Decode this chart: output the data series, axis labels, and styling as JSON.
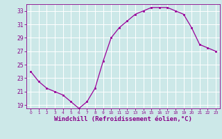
{
  "x": [
    0,
    1,
    2,
    3,
    4,
    5,
    6,
    7,
    8,
    9,
    10,
    11,
    12,
    13,
    14,
    15,
    16,
    17,
    18,
    19,
    20,
    21,
    22,
    23
  ],
  "y": [
    24.0,
    22.5,
    21.5,
    21.0,
    20.5,
    19.5,
    18.5,
    19.5,
    21.5,
    25.5,
    29.0,
    30.5,
    31.5,
    32.5,
    33.0,
    33.5,
    33.5,
    33.5,
    33.0,
    32.5,
    30.5,
    28.0,
    27.5,
    27.0
  ],
  "line_color": "#990099",
  "marker": "s",
  "marker_size": 2,
  "bg_color": "#cce8e8",
  "grid_color": "#ffffff",
  "xlabel": "Windchill (Refroidissement éolien,°C)",
  "xlabel_fontsize": 6.5,
  "tick_color": "#880088",
  "ylim": [
    18.5,
    34.0
  ],
  "xlim": [
    -0.5,
    23.5
  ],
  "yticks": [
    19,
    21,
    23,
    25,
    27,
    29,
    31,
    33
  ],
  "xtick_labels": [
    "0",
    "1",
    "2",
    "3",
    "4",
    "5",
    "6",
    "7",
    "8",
    "9",
    "10",
    "11",
    "12",
    "13",
    "14",
    "15",
    "16",
    "17",
    "18",
    "19",
    "20",
    "21",
    "22",
    "23"
  ]
}
